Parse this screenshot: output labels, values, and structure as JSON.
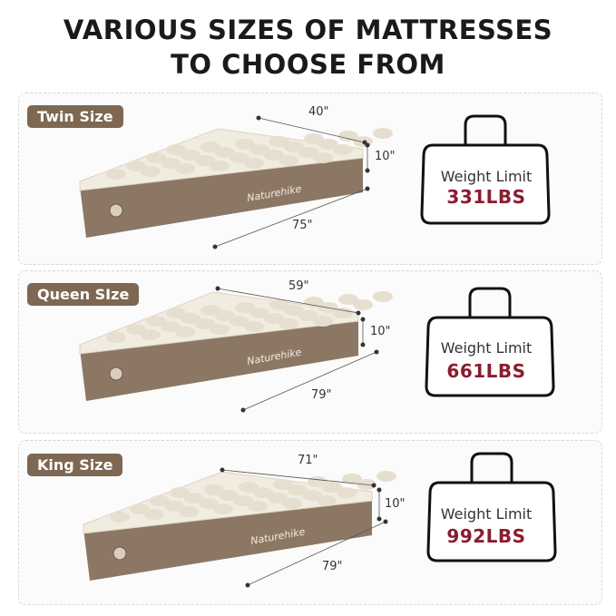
{
  "title": {
    "line1": "VARIOUS SIZES OF MATTRESSES",
    "line2": "TO CHOOSE FROM"
  },
  "brand": "Naturehike",
  "colors": {
    "tag": "#7e6753",
    "weight": "#8a1c2e",
    "mattress_top": "#f1ece0",
    "mattress_side": "#8c7764"
  },
  "sizes": [
    {
      "label": "Twin Size",
      "width": "40\"",
      "height": "10\"",
      "length": "75\"",
      "weight_label": "Weight Limit",
      "weight": "331LBS"
    },
    {
      "label": "Queen SIze",
      "width": "59\"",
      "height": "10\"",
      "length": "79\"",
      "weight_label": "Weight Limit",
      "weight": "661LBS"
    },
    {
      "label": "King Size",
      "width": "71\"",
      "height": "10\"",
      "length": "79\"",
      "weight_label": "Weight Limit",
      "weight": "992LBS"
    }
  ]
}
